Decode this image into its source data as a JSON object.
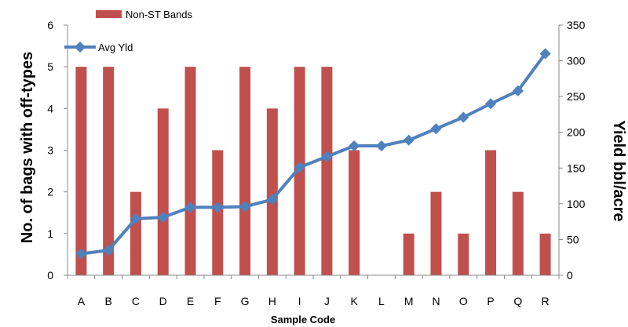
{
  "chart_data": {
    "type": "bar+line",
    "categories": [
      "A",
      "B",
      "C",
      "D",
      "E",
      "F",
      "G",
      "H",
      "I",
      "J",
      "K",
      "L",
      "M",
      "N",
      "O",
      "P",
      "Q",
      "R"
    ],
    "series": [
      {
        "name": "Non-ST Bands",
        "type": "bar",
        "axis": "left",
        "values": [
          5,
          5,
          2,
          4,
          5,
          3,
          5,
          4,
          5,
          5,
          3,
          0,
          1,
          2,
          1,
          3,
          2,
          1
        ]
      },
      {
        "name": "Avg Yld",
        "type": "line",
        "axis": "right",
        "values": [
          30,
          35,
          79,
          81,
          95,
          95,
          96,
          106,
          151,
          166,
          181,
          181,
          189,
          205,
          221,
          240,
          258,
          310
        ]
      }
    ],
    "xlabel": "Sample Code",
    "ylabel_left": "No. of bags with off-types",
    "ylabel_right": "Yield bbl/acre",
    "ylim_left": [
      0,
      6
    ],
    "ylim_right": [
      0,
      350
    ],
    "yticks_left": [
      "0",
      "1",
      "2",
      "3",
      "4",
      "5",
      "6"
    ],
    "yticks_right": [
      "0",
      "50",
      "100",
      "150",
      "200",
      "250",
      "300",
      "350"
    ],
    "grid": false,
    "legend": "top-left",
    "colors": {
      "bars": "#C0504D",
      "line": "#4F81BD"
    }
  }
}
